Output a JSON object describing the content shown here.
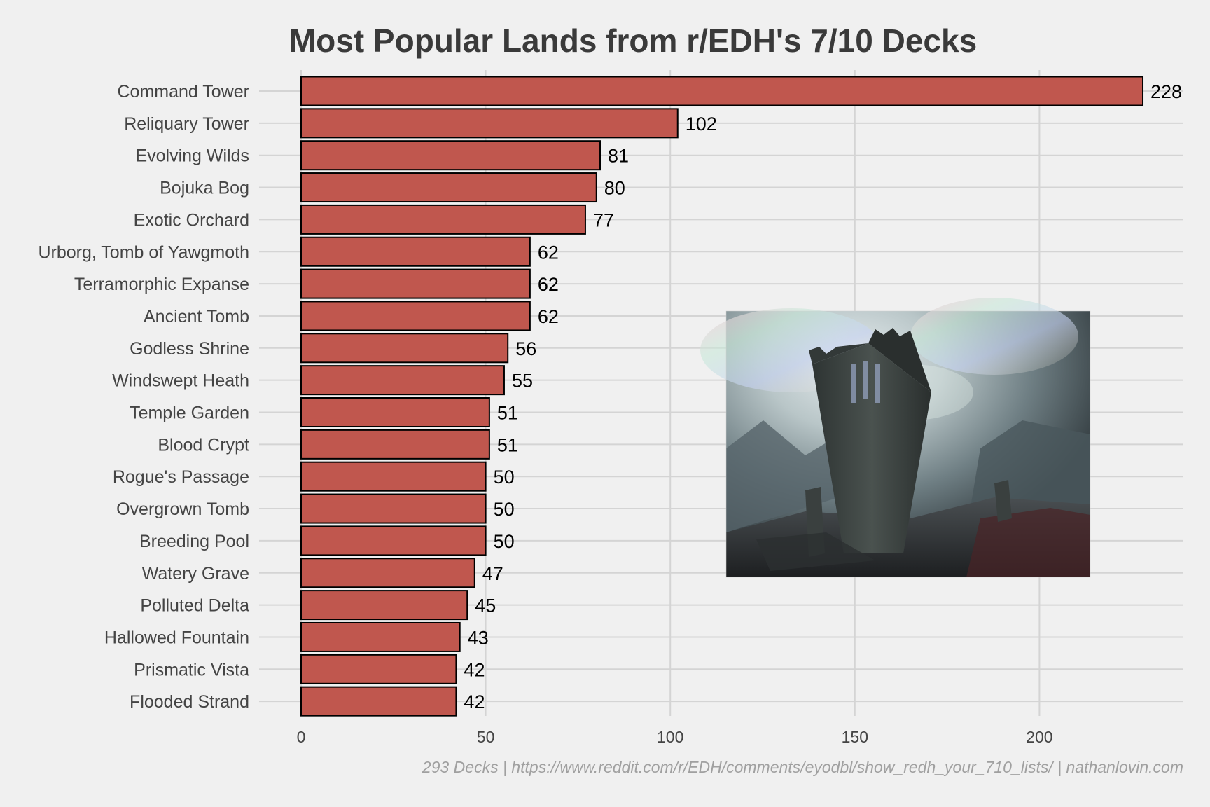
{
  "chart_data": {
    "type": "bar",
    "orientation": "horizontal",
    "title": "Most Popular Lands from r/EDH's 7/10 Decks",
    "caption": "293 Decks | https://www.reddit.com/r/EDH/comments/eyodbl/show_redh_your_710_lists/ | nathanlovin.com",
    "xlabel": "",
    "ylabel": "",
    "xlim": [
      0,
      240
    ],
    "x_ticks": [
      0,
      50,
      100,
      150,
      200
    ],
    "grid": true,
    "bar_color": "#c0574e",
    "bar_outline": "#000000",
    "categories": [
      "Command Tower",
      "Reliquary Tower",
      "Evolving Wilds",
      "Bojuka Bog",
      "Exotic Orchard",
      "Urborg, Tomb of Yawgmoth",
      "Terramorphic Expanse",
      "Ancient Tomb",
      "Godless Shrine",
      "Windswept Heath",
      "Temple Garden",
      "Blood Crypt",
      "Rogue's Passage",
      "Overgrown Tomb",
      "Breeding Pool",
      "Watery Grave",
      "Polluted Delta",
      "Hallowed Fountain",
      "Prismatic Vista",
      "Flooded Strand"
    ],
    "values": [
      228,
      102,
      81,
      80,
      77,
      62,
      62,
      62,
      56,
      55,
      51,
      51,
      50,
      50,
      50,
      47,
      45,
      43,
      42,
      42
    ]
  }
}
